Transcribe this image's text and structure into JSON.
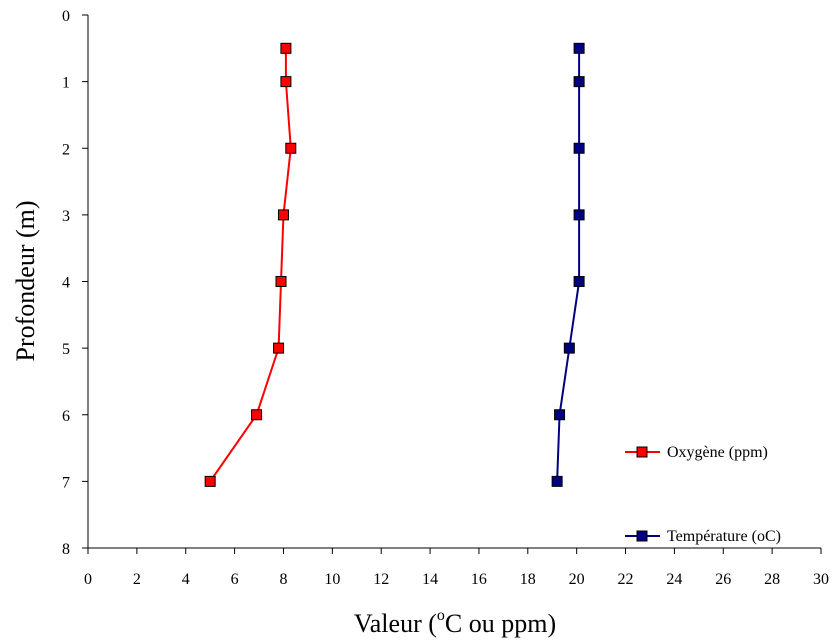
{
  "chart_data": {
    "type": "line",
    "title": "",
    "xlabel_prefix": "Valeur (",
    "xlabel_sup": "o",
    "xlabel_suffix": "C ou ppm)",
    "ylabel": "Profondeur (m)",
    "xlim": [
      0,
      30
    ],
    "ylim": [
      0,
      8
    ],
    "y_inverted": true,
    "x_ticks": [
      0,
      2,
      4,
      6,
      8,
      10,
      12,
      14,
      16,
      18,
      20,
      22,
      24,
      26,
      28,
      30
    ],
    "y_ticks": [
      0,
      1,
      2,
      3,
      4,
      5,
      6,
      7,
      8
    ],
    "grid": false,
    "legend_position": "right",
    "series": [
      {
        "name": "Oxygène (ppm)",
        "color": "#ff0000",
        "marker_fill": "#ff0000",
        "points": [
          {
            "x": 8.1,
            "y": 0.5
          },
          {
            "x": 8.1,
            "y": 1
          },
          {
            "x": 8.3,
            "y": 2
          },
          {
            "x": 8.0,
            "y": 3
          },
          {
            "x": 7.9,
            "y": 4
          },
          {
            "x": 7.8,
            "y": 5
          },
          {
            "x": 6.9,
            "y": 6
          },
          {
            "x": 5.0,
            "y": 7
          }
        ]
      },
      {
        "name": "Température (oC)",
        "color": "#000080",
        "marker_fill": "#000080",
        "points": [
          {
            "x": 20.1,
            "y": 0.5
          },
          {
            "x": 20.1,
            "y": 1
          },
          {
            "x": 20.1,
            "y": 2
          },
          {
            "x": 20.1,
            "y": 3
          },
          {
            "x": 20.1,
            "y": 4
          },
          {
            "x": 19.7,
            "y": 5
          },
          {
            "x": 19.3,
            "y": 6
          },
          {
            "x": 19.2,
            "y": 7
          }
        ]
      }
    ]
  }
}
